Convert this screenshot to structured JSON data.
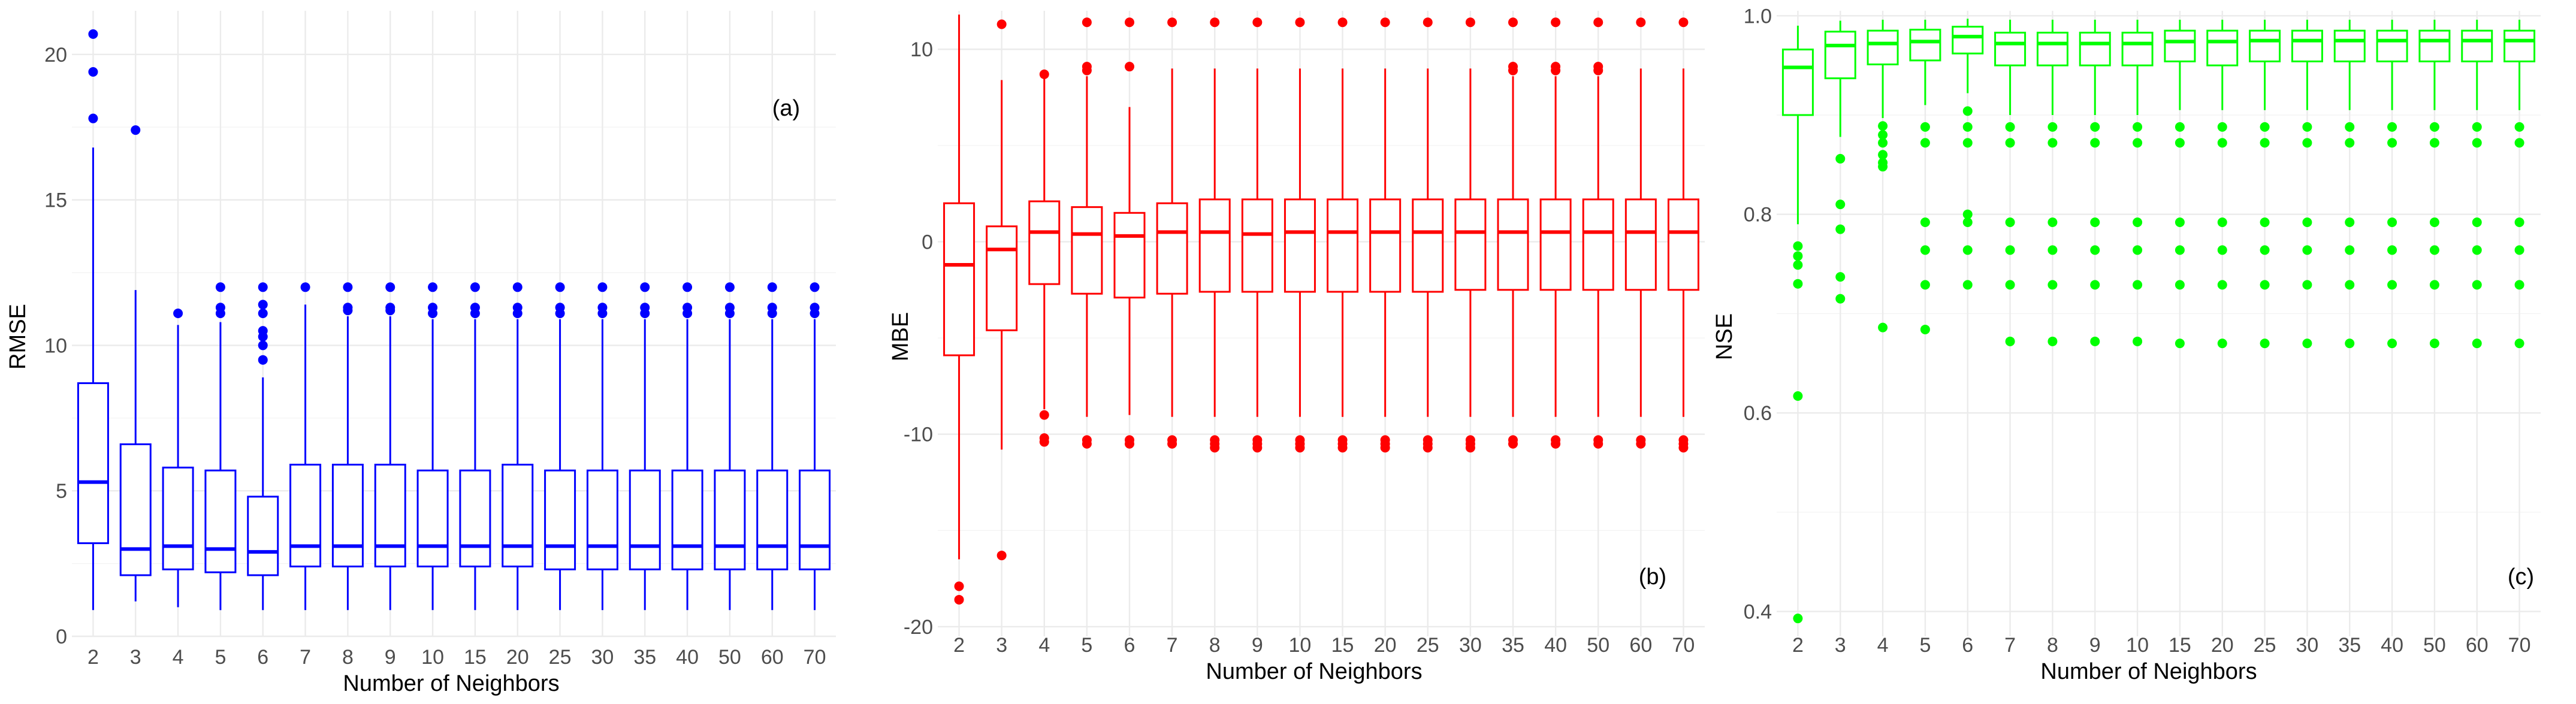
{
  "chart_data": [
    {
      "type": "box",
      "panel_label": "(a)",
      "xlabel": "Number of Neighbors",
      "ylabel": "RMSE",
      "color": "#0000ff",
      "ylim": [
        0,
        21.5
      ],
      "yticks": [
        0,
        5,
        10,
        15,
        20
      ],
      "categories": [
        "2",
        "3",
        "4",
        "5",
        "6",
        "7",
        "8",
        "9",
        "10",
        "15",
        "20",
        "25",
        "30",
        "35",
        "40",
        "50",
        "60",
        "70"
      ],
      "boxes": [
        {
          "q1": 3.2,
          "median": 5.3,
          "q3": 8.7,
          "low": 0.9,
          "high": 16.8,
          "outliers": [
            17.8,
            19.4,
            20.7
          ]
        },
        {
          "q1": 2.1,
          "median": 3.0,
          "q3": 6.6,
          "low": 1.2,
          "high": 11.9,
          "outliers": [
            17.4
          ]
        },
        {
          "q1": 2.3,
          "median": 3.1,
          "q3": 5.8,
          "low": 1.0,
          "high": 10.7,
          "outliers": [
            11.1
          ]
        },
        {
          "q1": 2.2,
          "median": 3.0,
          "q3": 5.7,
          "low": 0.9,
          "high": 10.8,
          "outliers": [
            11.1,
            11.3,
            12.0
          ]
        },
        {
          "q1": 2.1,
          "median": 2.9,
          "q3": 4.8,
          "low": 0.9,
          "high": 8.9,
          "outliers": [
            9.5,
            10.0,
            10.3,
            10.5,
            11.1,
            11.4,
            12.0
          ]
        },
        {
          "q1": 2.4,
          "median": 3.1,
          "q3": 5.9,
          "low": 0.9,
          "high": 11.4,
          "outliers": [
            12.0
          ]
        },
        {
          "q1": 2.4,
          "median": 3.1,
          "q3": 5.9,
          "low": 0.9,
          "high": 11.0,
          "outliers": [
            11.2,
            11.3,
            12.0
          ]
        },
        {
          "q1": 2.4,
          "median": 3.1,
          "q3": 5.9,
          "low": 0.9,
          "high": 11.0,
          "outliers": [
            11.2,
            11.3,
            12.0
          ]
        },
        {
          "q1": 2.4,
          "median": 3.1,
          "q3": 5.7,
          "low": 0.9,
          "high": 10.9,
          "outliers": [
            11.1,
            11.3,
            12.0
          ]
        },
        {
          "q1": 2.4,
          "median": 3.1,
          "q3": 5.7,
          "low": 0.9,
          "high": 10.9,
          "outliers": [
            11.1,
            11.3,
            12.0
          ]
        },
        {
          "q1": 2.4,
          "median": 3.1,
          "q3": 5.9,
          "low": 0.9,
          "high": 10.9,
          "outliers": [
            11.1,
            11.3,
            12.0
          ]
        },
        {
          "q1": 2.3,
          "median": 3.1,
          "q3": 5.7,
          "low": 0.9,
          "high": 10.9,
          "outliers": [
            11.1,
            11.3,
            12.0
          ]
        },
        {
          "q1": 2.3,
          "median": 3.1,
          "q3": 5.7,
          "low": 0.9,
          "high": 10.9,
          "outliers": [
            11.1,
            11.3,
            12.0
          ]
        },
        {
          "q1": 2.3,
          "median": 3.1,
          "q3": 5.7,
          "low": 0.9,
          "high": 10.9,
          "outliers": [
            11.1,
            11.3,
            12.0
          ]
        },
        {
          "q1": 2.3,
          "median": 3.1,
          "q3": 5.7,
          "low": 0.9,
          "high": 10.9,
          "outliers": [
            11.1,
            11.3,
            12.0
          ]
        },
        {
          "q1": 2.3,
          "median": 3.1,
          "q3": 5.7,
          "low": 0.9,
          "high": 10.9,
          "outliers": [
            11.1,
            11.3,
            12.0
          ]
        },
        {
          "q1": 2.3,
          "median": 3.1,
          "q3": 5.7,
          "low": 0.9,
          "high": 10.9,
          "outliers": [
            11.1,
            11.3,
            12.0
          ]
        },
        {
          "q1": 2.3,
          "median": 3.1,
          "q3": 5.7,
          "low": 0.9,
          "high": 10.9,
          "outliers": [
            11.1,
            11.3,
            12.0
          ]
        }
      ]
    },
    {
      "type": "box",
      "panel_label": "(b)",
      "xlabel": "Number of Neighbors",
      "ylabel": "MBE",
      "color": "#ff0000",
      "ylim": [
        -20.5,
        12
      ],
      "yticks": [
        -20,
        -10,
        0,
        10
      ],
      "categories": [
        "2",
        "3",
        "4",
        "5",
        "6",
        "7",
        "8",
        "9",
        "10",
        "15",
        "20",
        "25",
        "30",
        "35",
        "40",
        "50",
        "60",
        "70"
      ],
      "boxes": [
        {
          "q1": -5.9,
          "median": -1.2,
          "q3": 2.0,
          "low": -16.5,
          "high": 11.8,
          "outliers": [
            -17.9,
            -18.6
          ]
        },
        {
          "q1": -4.6,
          "median": -0.4,
          "q3": 0.8,
          "low": -10.8,
          "high": 8.4,
          "outliers": [
            11.3,
            -16.3
          ]
        },
        {
          "q1": -2.2,
          "median": 0.5,
          "q3": 2.1,
          "low": -8.7,
          "high": 8.5,
          "outliers": [
            8.7,
            -9.0,
            -10.2,
            -10.4
          ]
        },
        {
          "q1": -2.7,
          "median": 0.4,
          "q3": 1.8,
          "low": -9.1,
          "high": 8.6,
          "outliers": [
            8.9,
            9.1,
            11.4,
            -10.3,
            -10.5
          ]
        },
        {
          "q1": -2.9,
          "median": 0.3,
          "q3": 1.5,
          "low": -9.0,
          "high": 7.0,
          "outliers": [
            9.1,
            11.4,
            -10.3,
            -10.5
          ]
        },
        {
          "q1": -2.7,
          "median": 0.5,
          "q3": 2.0,
          "low": -9.1,
          "high": 9.0,
          "outliers": [
            11.4,
            -10.3,
            -10.5
          ]
        },
        {
          "q1": -2.6,
          "median": 0.5,
          "q3": 2.2,
          "low": -9.1,
          "high": 9.0,
          "outliers": [
            11.4,
            -10.3,
            -10.5,
            -10.7
          ]
        },
        {
          "q1": -2.6,
          "median": 0.4,
          "q3": 2.2,
          "low": -9.1,
          "high": 9.0,
          "outliers": [
            11.4,
            -10.3,
            -10.5,
            -10.7
          ]
        },
        {
          "q1": -2.6,
          "median": 0.5,
          "q3": 2.2,
          "low": -9.1,
          "high": 9.0,
          "outliers": [
            11.4,
            -10.3,
            -10.5,
            -10.7
          ]
        },
        {
          "q1": -2.6,
          "median": 0.5,
          "q3": 2.2,
          "low": -9.1,
          "high": 9.0,
          "outliers": [
            11.4,
            -10.3,
            -10.5,
            -10.7
          ]
        },
        {
          "q1": -2.6,
          "median": 0.5,
          "q3": 2.2,
          "low": -9.1,
          "high": 9.0,
          "outliers": [
            11.4,
            -10.3,
            -10.5,
            -10.7
          ]
        },
        {
          "q1": -2.6,
          "median": 0.5,
          "q3": 2.2,
          "low": -9.1,
          "high": 9.0,
          "outliers": [
            11.4,
            -10.3,
            -10.5,
            -10.7
          ]
        },
        {
          "q1": -2.5,
          "median": 0.5,
          "q3": 2.2,
          "low": -9.1,
          "high": 9.0,
          "outliers": [
            11.4,
            -10.3,
            -10.5,
            -10.7
          ]
        },
        {
          "q1": -2.5,
          "median": 0.5,
          "q3": 2.2,
          "low": -9.1,
          "high": 8.6,
          "outliers": [
            8.9,
            9.1,
            11.4,
            -10.3,
            -10.5
          ]
        },
        {
          "q1": -2.5,
          "median": 0.5,
          "q3": 2.2,
          "low": -9.1,
          "high": 8.6,
          "outliers": [
            8.9,
            9.1,
            11.4,
            -10.3,
            -10.5
          ]
        },
        {
          "q1": -2.5,
          "median": 0.5,
          "q3": 2.2,
          "low": -9.1,
          "high": 8.6,
          "outliers": [
            8.9,
            9.1,
            11.4,
            -10.3,
            -10.5
          ]
        },
        {
          "q1": -2.5,
          "median": 0.5,
          "q3": 2.2,
          "low": -9.1,
          "high": 9.0,
          "outliers": [
            11.4,
            -10.3,
            -10.5
          ]
        },
        {
          "q1": -2.5,
          "median": 0.5,
          "q3": 2.2,
          "low": -9.1,
          "high": 9.0,
          "outliers": [
            11.4,
            -10.3,
            -10.5,
            -10.7
          ]
        }
      ]
    },
    {
      "type": "box",
      "panel_label": "(c)",
      "xlabel": "Number of Neighbors",
      "ylabel": "NSE",
      "color": "#00ff00",
      "ylim": [
        0.375,
        1.005
      ],
      "yticks": [
        0.4,
        0.6,
        0.8,
        1.0
      ],
      "ytick_labels": [
        "0.4",
        "0.6",
        "0.8",
        "1.0"
      ],
      "categories": [
        "2",
        "3",
        "4",
        "5",
        "6",
        "7",
        "8",
        "9",
        "10",
        "15",
        "20",
        "25",
        "30",
        "35",
        "40",
        "50",
        "60",
        "70"
      ],
      "boxes": [
        {
          "q1": 0.9,
          "median": 0.948,
          "q3": 0.966,
          "low": 0.79,
          "high": 0.99,
          "outliers": [
            0.768,
            0.758,
            0.749,
            0.73,
            0.617,
            0.393
          ]
        },
        {
          "q1": 0.937,
          "median": 0.97,
          "q3": 0.984,
          "low": 0.878,
          "high": 0.995,
          "outliers": [
            0.856,
            0.81,
            0.785,
            0.737,
            0.715
          ]
        },
        {
          "q1": 0.951,
          "median": 0.972,
          "q3": 0.985,
          "low": 0.897,
          "high": 0.996,
          "outliers": [
            0.889,
            0.88,
            0.872,
            0.86,
            0.852,
            0.848,
            0.686
          ]
        },
        {
          "q1": 0.955,
          "median": 0.974,
          "q3": 0.986,
          "low": 0.91,
          "high": 0.996,
          "outliers": [
            0.888,
            0.872,
            0.792,
            0.764,
            0.729,
            0.684
          ]
        },
        {
          "q1": 0.962,
          "median": 0.979,
          "q3": 0.989,
          "low": 0.922,
          "high": 0.997,
          "outliers": [
            0.904,
            0.888,
            0.872,
            0.8,
            0.792,
            0.764,
            0.729
          ]
        },
        {
          "q1": 0.95,
          "median": 0.972,
          "q3": 0.983,
          "low": 0.9,
          "high": 0.996,
          "outliers": [
            0.888,
            0.872,
            0.792,
            0.764,
            0.729,
            0.672
          ]
        },
        {
          "q1": 0.95,
          "median": 0.972,
          "q3": 0.983,
          "low": 0.9,
          "high": 0.996,
          "outliers": [
            0.888,
            0.872,
            0.792,
            0.764,
            0.729,
            0.672
          ]
        },
        {
          "q1": 0.95,
          "median": 0.972,
          "q3": 0.983,
          "low": 0.9,
          "high": 0.996,
          "outliers": [
            0.888,
            0.872,
            0.792,
            0.764,
            0.729,
            0.672
          ]
        },
        {
          "q1": 0.95,
          "median": 0.972,
          "q3": 0.983,
          "low": 0.9,
          "high": 0.996,
          "outliers": [
            0.888,
            0.872,
            0.792,
            0.764,
            0.729,
            0.672
          ]
        },
        {
          "q1": 0.954,
          "median": 0.974,
          "q3": 0.985,
          "low": 0.905,
          "high": 0.996,
          "outliers": [
            0.888,
            0.872,
            0.792,
            0.764,
            0.729,
            0.67
          ]
        },
        {
          "q1": 0.95,
          "median": 0.974,
          "q3": 0.985,
          "low": 0.905,
          "high": 0.996,
          "outliers": [
            0.888,
            0.872,
            0.792,
            0.764,
            0.729,
            0.67
          ]
        },
        {
          "q1": 0.954,
          "median": 0.975,
          "q3": 0.985,
          "low": 0.905,
          "high": 0.996,
          "outliers": [
            0.888,
            0.872,
            0.792,
            0.764,
            0.729,
            0.67
          ]
        },
        {
          "q1": 0.954,
          "median": 0.975,
          "q3": 0.985,
          "low": 0.905,
          "high": 0.996,
          "outliers": [
            0.888,
            0.872,
            0.792,
            0.764,
            0.729,
            0.67
          ]
        },
        {
          "q1": 0.954,
          "median": 0.975,
          "q3": 0.985,
          "low": 0.905,
          "high": 0.996,
          "outliers": [
            0.888,
            0.872,
            0.792,
            0.764,
            0.729,
            0.67
          ]
        },
        {
          "q1": 0.954,
          "median": 0.975,
          "q3": 0.985,
          "low": 0.905,
          "high": 0.996,
          "outliers": [
            0.888,
            0.872,
            0.792,
            0.764,
            0.729,
            0.67
          ]
        },
        {
          "q1": 0.954,
          "median": 0.975,
          "q3": 0.985,
          "low": 0.905,
          "high": 0.996,
          "outliers": [
            0.888,
            0.872,
            0.792,
            0.764,
            0.729,
            0.67
          ]
        },
        {
          "q1": 0.954,
          "median": 0.975,
          "q3": 0.985,
          "low": 0.905,
          "high": 0.996,
          "outliers": [
            0.888,
            0.872,
            0.792,
            0.764,
            0.729,
            0.67
          ]
        },
        {
          "q1": 0.954,
          "median": 0.975,
          "q3": 0.985,
          "low": 0.905,
          "high": 0.996,
          "outliers": [
            0.888,
            0.872,
            0.792,
            0.764,
            0.729,
            0.67
          ]
        }
      ]
    }
  ]
}
